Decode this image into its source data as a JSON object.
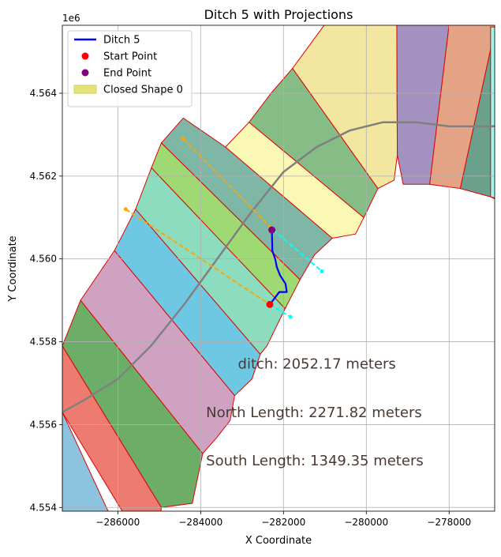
{
  "chart_data": {
    "type": "map-plot",
    "title": "Ditch 5 with Projections",
    "xlabel": "X Coordinate",
    "ylabel": "Y Coordinate",
    "y_offset_label": "1e6",
    "xlim": [
      -287340,
      -276900
    ],
    "ylim": [
      4.55391,
      4.56564
    ],
    "x_ticks": [
      {
        "value": -286000,
        "label": "−286000"
      },
      {
        "value": -284000,
        "label": "−284000"
      },
      {
        "value": -282000,
        "label": "−282000"
      },
      {
        "value": -280000,
        "label": "−280000"
      },
      {
        "value": -278000,
        "label": "−278000"
      }
    ],
    "y_ticks": [
      {
        "value": 4.554,
        "label": "4.554"
      },
      {
        "value": 4.556,
        "label": "4.556"
      },
      {
        "value": 4.558,
        "label": "4.558"
      },
      {
        "value": 4.56,
        "label": "4.560"
      },
      {
        "value": 4.562,
        "label": "4.562"
      },
      {
        "value": 4.564,
        "label": "4.564"
      }
    ],
    "grid": true,
    "legend": {
      "placement": "upper-left",
      "entries": [
        {
          "label": "Ditch 5",
          "kind": "line",
          "color": "#0000ff"
        },
        {
          "label": "Start Point",
          "kind": "marker",
          "color": "#ff0000"
        },
        {
          "label": "End Point",
          "kind": "marker",
          "color": "#800080"
        },
        {
          "label": "Closed Shape 0",
          "kind": "patch",
          "color": "#e6e27a"
        }
      ]
    },
    "annotations": [
      {
        "text": "ditch: 2052.17 meters",
        "x": -283100,
        "y": 4.55735
      },
      {
        "text": "North Length: 2271.82 meters",
        "x": -283870,
        "y": 4.55618
      },
      {
        "text": "South Length: 1349.35 meters",
        "x": -283870,
        "y": 4.55502
      }
    ],
    "polygon_strips": [
      {
        "color": "#8cc3de",
        "pts": [
          [
            -287340,
            4.5528
          ],
          [
            -287340,
            4.5563
          ],
          [
            -285860,
            4.5531
          ]
        ]
      },
      {
        "color": "#ee7b6f",
        "pts": [
          [
            -287340,
            4.5563
          ],
          [
            -287340,
            4.5579
          ],
          [
            -284950,
            4.554
          ],
          [
            -285100,
            4.5526
          ]
        ]
      },
      {
        "color": "#6cad68",
        "pts": [
          [
            -287340,
            4.5579
          ],
          [
            -286900,
            4.559
          ],
          [
            -283950,
            4.5553
          ],
          [
            -284200,
            4.5541
          ],
          [
            -284950,
            4.554
          ]
        ]
      },
      {
        "color": "#d0a2c1",
        "pts": [
          [
            -286900,
            4.559
          ],
          [
            -286080,
            4.5602
          ],
          [
            -283180,
            4.5567
          ],
          [
            -283290,
            4.5561
          ],
          [
            -283600,
            4.5557
          ],
          [
            -283950,
            4.5553
          ]
        ]
      },
      {
        "color": "#6ec8e4",
        "pts": [
          [
            -286080,
            4.5602
          ],
          [
            -285570,
            4.5612
          ],
          [
            -282560,
            4.5577
          ],
          [
            -282760,
            4.5571
          ],
          [
            -283180,
            4.5567
          ]
        ]
      },
      {
        "color": "#8cdcc0",
        "pts": [
          [
            -285570,
            4.5612
          ],
          [
            -285190,
            4.5622
          ],
          [
            -281960,
            4.5588
          ],
          [
            -282400,
            4.5579
          ],
          [
            -282560,
            4.5577
          ]
        ]
      },
      {
        "color": "#9fd973",
        "pts": [
          [
            -285190,
            4.5622
          ],
          [
            -284950,
            4.5628
          ],
          [
            -281600,
            4.5595
          ],
          [
            -281960,
            4.5588
          ]
        ]
      },
      {
        "color": "#7fb7a6",
        "pts": [
          [
            -284950,
            4.5628
          ],
          [
            -284420,
            4.5634
          ],
          [
            -283400,
            4.5627
          ],
          [
            -280820,
            4.5605
          ],
          [
            -281250,
            4.5601
          ],
          [
            -281600,
            4.5595
          ]
        ]
      },
      {
        "color": "#fbf7b4",
        "pts": [
          [
            -283400,
            4.5627
          ],
          [
            -282830,
            4.5633
          ],
          [
            -280060,
            4.561
          ],
          [
            -280260,
            4.5606
          ],
          [
            -280820,
            4.5605
          ]
        ]
      },
      {
        "color": "#86bd86",
        "pts": [
          [
            -282830,
            4.5633
          ],
          [
            -282300,
            4.564
          ],
          [
            -281780,
            4.5646
          ],
          [
            -279720,
            4.5617
          ],
          [
            -280060,
            4.561
          ]
        ]
      },
      {
        "color": "#f2e6a1",
        "pts": [
          [
            -281780,
            4.5646
          ],
          [
            -280900,
            4.5658
          ],
          [
            -280300,
            4.5672
          ],
          [
            -279270,
            4.5672
          ],
          [
            -279250,
            4.5625
          ],
          [
            -279330,
            4.5619
          ],
          [
            -279720,
            4.5617
          ]
        ]
      },
      {
        "color": "#a392c0",
        "pts": [
          [
            -279270,
            4.5672
          ],
          [
            -277810,
            4.5672
          ],
          [
            -278470,
            4.5618
          ],
          [
            -279110,
            4.5618
          ],
          [
            -279250,
            4.5625
          ]
        ]
      },
      {
        "color": "#e3a384",
        "pts": [
          [
            -277810,
            4.5672
          ],
          [
            -276530,
            4.5672
          ],
          [
            -277730,
            4.5617
          ],
          [
            -278470,
            4.5618
          ]
        ]
      },
      {
        "color": "#6aa08c",
        "pts": [
          [
            -276530,
            4.5672
          ],
          [
            -274100,
            4.5672
          ],
          [
            -276000,
            4.5614
          ],
          [
            -276600,
            4.5613
          ],
          [
            -277000,
            4.5615
          ],
          [
            -277730,
            4.5617
          ]
        ]
      },
      {
        "color": "#9af7ea",
        "pts": [
          [
            -277000,
            4.5656
          ],
          [
            -276300,
            4.5656
          ],
          [
            -276300,
            4.5613
          ],
          [
            -277000,
            4.5615
          ]
        ]
      }
    ],
    "centerline": [
      [
        -287340,
        4.5563
      ],
      [
        -286800,
        4.5566
      ],
      [
        -286000,
        4.5571
      ],
      [
        -285200,
        4.5579
      ],
      [
        -284400,
        4.5589
      ],
      [
        -283600,
        4.56
      ],
      [
        -282800,
        4.5611
      ],
      [
        -282000,
        4.5621
      ],
      [
        -281200,
        4.5627
      ],
      [
        -280400,
        4.5631
      ],
      [
        -279600,
        4.5633
      ],
      [
        -278800,
        4.5633
      ],
      [
        -278000,
        4.5632
      ],
      [
        -277000,
        4.5632
      ],
      [
        -276900,
        4.5632
      ]
    ],
    "ditch": [
      [
        -282330,
        4.5589
      ],
      [
        -282100,
        4.5592
      ],
      [
        -281920,
        4.5592
      ],
      [
        -281950,
        4.5594
      ],
      [
        -282080,
        4.5596
      ],
      [
        -282160,
        4.5598
      ],
      [
        -282200,
        4.56
      ],
      [
        -282270,
        4.5602
      ],
      [
        -282270,
        4.5603
      ],
      [
        -282280,
        4.5607
      ]
    ],
    "projections": [
      {
        "color": "#ffa500",
        "pts": [
          [
            -284420,
            4.5629
          ],
          [
            -282250,
            4.5607
          ]
        ]
      },
      {
        "color": "#00ffff",
        "pts": [
          [
            -282250,
            4.5607
          ],
          [
            -281070,
            4.5597
          ]
        ]
      },
      {
        "color": "#ffa500",
        "pts": [
          [
            -285810,
            4.5612
          ],
          [
            -282330,
            4.5589
          ]
        ]
      },
      {
        "color": "#00ffff",
        "pts": [
          [
            -282330,
            4.5589
          ],
          [
            -281830,
            4.5586
          ]
        ]
      }
    ],
    "start_point": {
      "x": -282330,
      "y": 4.5589
    },
    "end_point": {
      "x": -282280,
      "y": 4.5607
    }
  }
}
